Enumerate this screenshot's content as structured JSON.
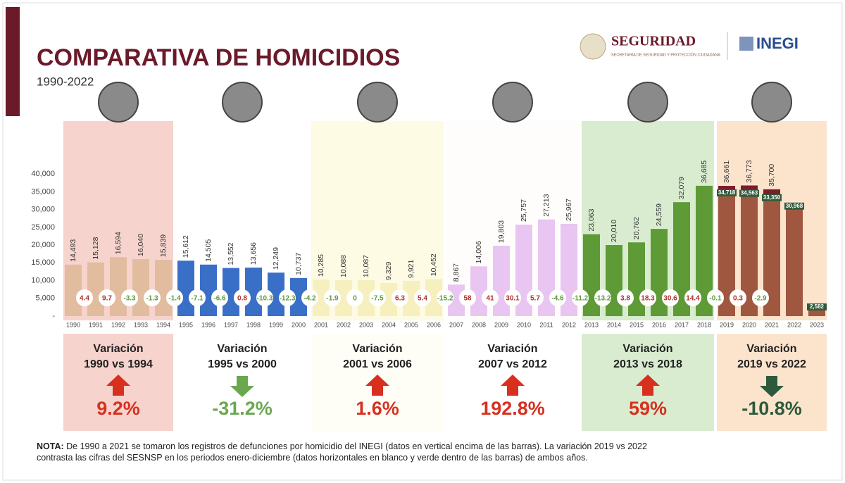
{
  "logos": {
    "seguridad": "SEGURIDAD",
    "secretaria": "SECRETARÍA DE SEGURIDAD Y PROTECCIÓN CIUDADANA",
    "inegi": "INEGI"
  },
  "note": {
    "label": "NOTA:",
    "text": "De 1990 a 2021 se tomaron los registros de defunciones por homicidio del INEGI (datos en vertical encima de las barras). La variación 2019 vs 2022 contrasta las cifras del SESNSP en los periodos enero-diciembre (datos horizontales en blanco y verde dentro de las barras) de ambos años."
  },
  "chart_data": {
    "type": "bar",
    "title": "COMPARATIVA DE HOMICIDIOS",
    "subtitle": "1990-2022",
    "categories": [
      "1990",
      "1991",
      "1992",
      "1993",
      "1994",
      "1995",
      "1996",
      "1997",
      "1998",
      "1999",
      "2000",
      "2001",
      "2002",
      "2003",
      "2004",
      "2005",
      "2006",
      "2007",
      "2008",
      "2009",
      "2010",
      "2011",
      "2012",
      "2013",
      "2014",
      "2015",
      "2016",
      "2017",
      "2018",
      "2019",
      "2020",
      "2021",
      "2022",
      "2023"
    ],
    "inegi": {
      "values": [
        14493,
        15128,
        16594,
        16040,
        15839,
        15612,
        14505,
        13552,
        13656,
        12249,
        10737,
        10285,
        10088,
        10087,
        9329,
        9921,
        10452,
        8867,
        14006,
        19803,
        25757,
        27213,
        25967,
        23063,
        20010,
        20762,
        24559,
        32079,
        36685,
        36661,
        36773,
        35700,
        null,
        null
      ],
      "value_labels": [
        "14,493",
        "15,128",
        "16,594",
        "16,040",
        "15,839",
        "15,612",
        "14,505",
        "13,552",
        "13,656",
        "12,249",
        "10,737",
        "10,285",
        "10,088",
        "10,087",
        "9,329",
        "9,921",
        "10,452",
        "8,867",
        "14,006",
        "19,803",
        "25,757",
        "27,213",
        "25,967",
        "23,063",
        "20,010",
        "20,762",
        "24,559",
        "32,079",
        "36,685",
        "36,661",
        "36,773",
        "35,700",
        null,
        null
      ]
    },
    "sesnsp": {
      "values": [
        null,
        null,
        null,
        null,
        null,
        null,
        null,
        null,
        null,
        null,
        null,
        null,
        null,
        null,
        null,
        null,
        null,
        null,
        null,
        null,
        null,
        null,
        null,
        null,
        null,
        null,
        null,
        null,
        null,
        34718,
        34563,
        33350,
        30968,
        2582
      ],
      "value_labels": [
        null,
        null,
        null,
        null,
        null,
        null,
        null,
        null,
        null,
        null,
        null,
        null,
        null,
        null,
        null,
        null,
        null,
        null,
        null,
        null,
        null,
        null,
        null,
        null,
        null,
        null,
        null,
        null,
        null,
        "34,718",
        "34,563",
        "33,350",
        "30,968",
        "2,582"
      ],
      "color": "#a0573f",
      "label_color": "#2f5a3a"
    },
    "inegi_overlap_color": "#7b1e2b",
    "changes": [
      4.4,
      9.7,
      -3.3,
      -1.3,
      -1.4,
      -7.1,
      -6.6,
      0.8,
      -10.3,
      -12.3,
      -4.2,
      -1.9,
      0,
      -7.5,
      6.3,
      5.4,
      -15.2,
      58,
      41,
      30.1,
      5.7,
      -4.6,
      -11.2,
      -13.2,
      3.8,
      18.3,
      30.6,
      14.4,
      -0.1,
      0.3,
      -2.9
    ],
    "change_colors": {
      "up": "#b0302a",
      "down": "#5d9a3c"
    },
    "ylim": [
      0,
      44000
    ],
    "yticks": [
      {
        "value": 0,
        "label": "-"
      },
      {
        "value": 5000,
        "label": "5,000"
      },
      {
        "value": 10000,
        "label": "10,000"
      },
      {
        "value": 15000,
        "label": "15,000"
      },
      {
        "value": 20000,
        "label": "20,000"
      },
      {
        "value": 25000,
        "label": "25,000"
      },
      {
        "value": 30000,
        "label": "30,000"
      },
      {
        "value": 35000,
        "label": "35,000"
      },
      {
        "value": 40000,
        "label": "40,000"
      }
    ],
    "periods": [
      {
        "label": "Variación",
        "range": "1990 vs 1994",
        "change": 9.2,
        "change_label": "9.2%",
        "color": "#d7301f",
        "bg": "#f7d3cd",
        "box_bg": "#f7d3cd",
        "bar_color": "#e2bc9f"
      },
      {
        "label": "Variación",
        "range": "1995 vs 2000",
        "change": -31.2,
        "change_label": "-31.2%",
        "color": "#6aa84f",
        "bg": "#ffffff",
        "box_bg": "#ffffff",
        "bar_color": "#3a6fc7"
      },
      {
        "label": "Variación",
        "range": "2001 vs 2006",
        "change": 1.6,
        "change_label": "1.6%",
        "color": "#d7301f",
        "bg": "#fdfbe4",
        "box_bg": "#fffef6",
        "bar_color": "#f6f0bf"
      },
      {
        "label": "Variación",
        "range": "2007 vs 2012",
        "change": 192.8,
        "change_label": "192.8%",
        "color": "#d7301f",
        "bg": "#fffdfb",
        "box_bg": "#ffffff",
        "bar_color": "#e8c6f1"
      },
      {
        "label": "Variación",
        "range": "2013 vs 2018",
        "change": 59,
        "change_label": "59%",
        "color": "#d7301f",
        "bg": "#d9ecd0",
        "box_bg": "#d9ecd0",
        "bar_color": "#5e9a36"
      },
      {
        "label": "Variación",
        "range": "2019 vs 2022",
        "change": -10.8,
        "change_label": "-10.8%",
        "color": "#2d5a3d",
        "bg": "#fbe3cc",
        "box_bg": "#fbe3cc",
        "bar_color": "#a0573f"
      }
    ]
  }
}
